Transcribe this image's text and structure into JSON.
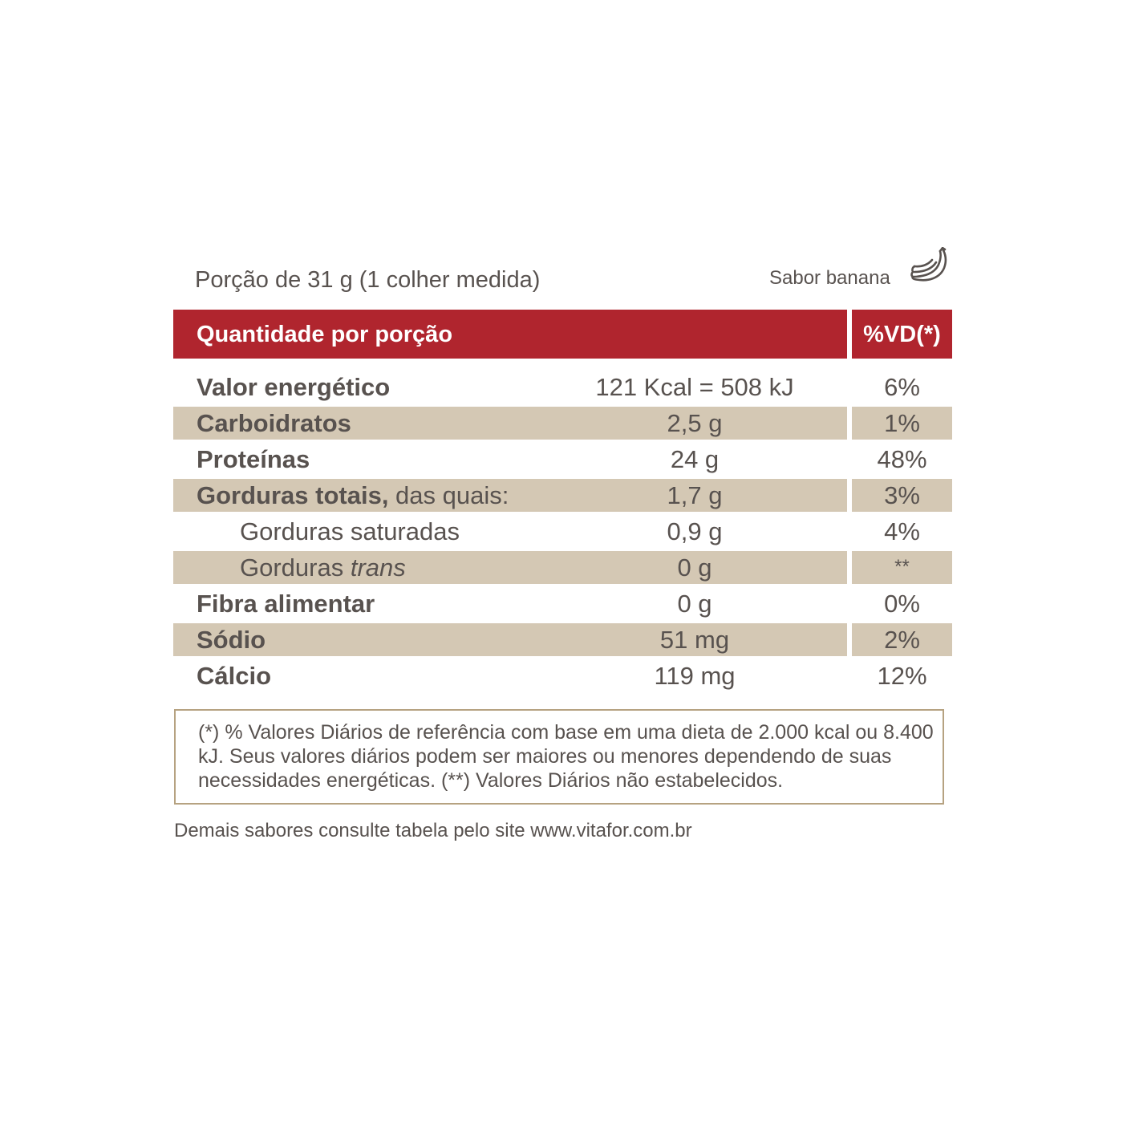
{
  "colors": {
    "header_red": "#b0252e",
    "band_beige": "#d4c8b4",
    "text_gray": "#58524f",
    "border_gold": "#b6a281"
  },
  "portion_label": "Porção de 31 g (1 colher medida)",
  "flavor_label": "Sabor banana",
  "flavor_icon": "banana-icon",
  "header": {
    "quantity_label": "Quantidade por porção",
    "vd_label": "%VD(*)"
  },
  "rows": [
    {
      "name": "Valor energético",
      "amount": "121 Kcal = 508 kJ",
      "vd": "6%"
    },
    {
      "name": "Carboidratos",
      "amount": "2,5 g",
      "vd": "1%"
    },
    {
      "name": "Proteínas",
      "amount": "24 g",
      "vd": "48%"
    },
    {
      "name_bold": "Gorduras totais,",
      "name_suffix": " das quais:",
      "amount": "1,7 g",
      "vd": "3%"
    },
    {
      "name": "Gorduras saturadas",
      "amount": "0,9 g",
      "vd": "4%"
    },
    {
      "name_prefix": "Gorduras ",
      "name_italic": "trans",
      "amount": "0 g",
      "vd": "**"
    },
    {
      "name": "Fibra alimentar",
      "amount": "0 g",
      "vd": "0%"
    },
    {
      "name": "Sódio",
      "amount": "51 mg",
      "vd": "2%"
    },
    {
      "name": "Cálcio",
      "amount": "119 mg",
      "vd": "12%"
    }
  ],
  "footnote": "(*) % Valores Diários de referência com base em uma dieta de 2.000 kcal ou 8.400 kJ. Seus valores diários podem ser maiores ou menores dependendo de suas necessidades energéticas. (**) Valores Diários não estabelecidos.",
  "site_note": "Demais sabores consulte tabela pelo site www.vitafor.com.br"
}
